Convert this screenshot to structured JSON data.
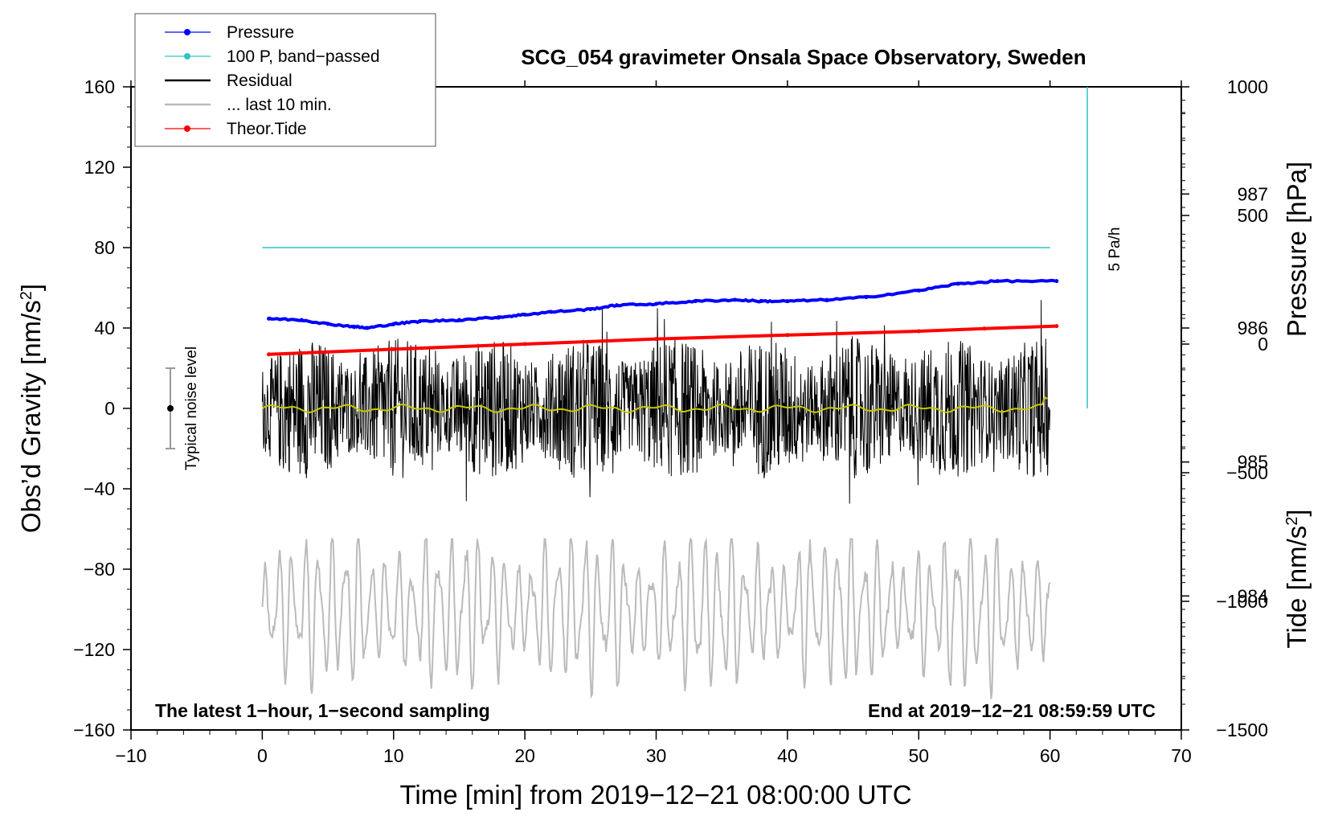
{
  "chart_data": {
    "type": "line",
    "title": "SCG_054 gravimeter Onsala Space Observatory, Sweden",
    "xlabel": "Time [min] from 2019−12−21 08:00:00 UTC",
    "ylabel_left": "Obs’d Gravity [nm/s",
    "ylabel_left_sup": "2",
    "ylabel_left_end": "]",
    "ylabel_right_pressure": "Pressure [hPa]",
    "ylabel_right_tide": "Tide [nm/s",
    "ylabel_right_tide_sup": "2",
    "ylabel_right_tide_end": "]",
    "xlim": [
      -10,
      70
    ],
    "ylim": [
      -160,
      160
    ],
    "pressure_ylim": [
      983.0,
      987.8
    ],
    "tide_ylim": [
      -1500,
      1000
    ],
    "x_ticks": [
      -10,
      0,
      10,
      20,
      30,
      40,
      50,
      60,
      70
    ],
    "x_tick_labels": [
      "−10",
      "0",
      "10",
      "20",
      "30",
      "40",
      "50",
      "60",
      "70"
    ],
    "y_ticks": [
      -160,
      -120,
      -80,
      -40,
      0,
      40,
      80,
      120,
      160
    ],
    "y_tick_labels": [
      "−160",
      "−120",
      "−80",
      "−40",
      "0",
      "40",
      "80",
      "120",
      "160"
    ],
    "pressure_ticks": [
      984,
      985,
      986,
      987
    ],
    "pressure_tick_labels": [
      "984",
      "985",
      "986",
      "987"
    ],
    "tide_ticks": [
      -1500,
      -1000,
      -500,
      0,
      500,
      1000
    ],
    "tide_tick_labels": [
      "−1500",
      "−1000",
      "−500",
      "0",
      "500",
      "1000"
    ],
    "legend": [
      {
        "label": "Pressure",
        "color": "#0000ff",
        "style": "line-dot"
      },
      {
        "label": "100 P, band−passed",
        "color": "#2ec4c4",
        "style": "line-dot"
      },
      {
        "label": "Residual",
        "color": "#000000",
        "style": "line"
      },
      {
        "label": "... last 10 min.",
        "color": "#bbbbbb",
        "style": "line"
      },
      {
        "label": "Theor.Tide",
        "color": "#ff0000",
        "style": "line-dot"
      }
    ],
    "series": [
      {
        "name": "Pressure",
        "axis": "pressure",
        "color": "#0000ff",
        "x": [
          0.5,
          3,
          5,
          7,
          8,
          10,
          12,
          15,
          18,
          20,
          22,
          25,
          27,
          30,
          33,
          36,
          38,
          40,
          43,
          46,
          50,
          53,
          56,
          60.5
        ],
        "values": [
          986.07,
          986.06,
          986.03,
          986.01,
          986.0,
          986.03,
          986.05,
          986.06,
          986.08,
          986.1,
          986.12,
          986.14,
          986.17,
          986.18,
          986.2,
          986.21,
          986.2,
          986.2,
          986.21,
          986.23,
          986.28,
          986.33,
          986.35,
          986.35
        ]
      },
      {
        "name": "100 P, band−passed",
        "axis": "gravity",
        "color": "#2ec4c4",
        "x": [
          0,
          60
        ],
        "values": [
          80,
          80
        ]
      },
      {
        "name": "Residual",
        "axis": "gravity",
        "color": "#000000",
        "x_range": [
          0,
          60
        ],
        "amplitude_range": [
          -60,
          62
        ]
      },
      {
        "name": "... last 10 min.",
        "axis": "gravity",
        "color": "#bbbbbb",
        "x_range": [
          0,
          60
        ],
        "amplitude_range": [
          -160,
          -65
        ]
      },
      {
        "name": "Residual smoothed",
        "axis": "gravity",
        "color": "#c8c800",
        "x_range": [
          0,
          60
        ],
        "amplitude_range": [
          -2,
          5
        ]
      },
      {
        "name": "Theor.Tide",
        "axis": "tide",
        "color": "#ff0000",
        "x": [
          0.5,
          10,
          20,
          30,
          40,
          50,
          55,
          60.5
        ],
        "values": [
          -40,
          -20,
          0,
          20,
          35,
          50,
          60,
          70
        ]
      }
    ],
    "vertical_marker": {
      "x": 63,
      "color": "#2ec4c4",
      "label": "5 Pa/h"
    },
    "noise_bar": {
      "x": -7,
      "center": 0,
      "low": -20,
      "high": 20,
      "label": "Typical noise level"
    },
    "annotation_left": "The latest 1−hour, 1−second sampling",
    "annotation_right": "End at 2019−12−21 08:59:59 UTC"
  }
}
